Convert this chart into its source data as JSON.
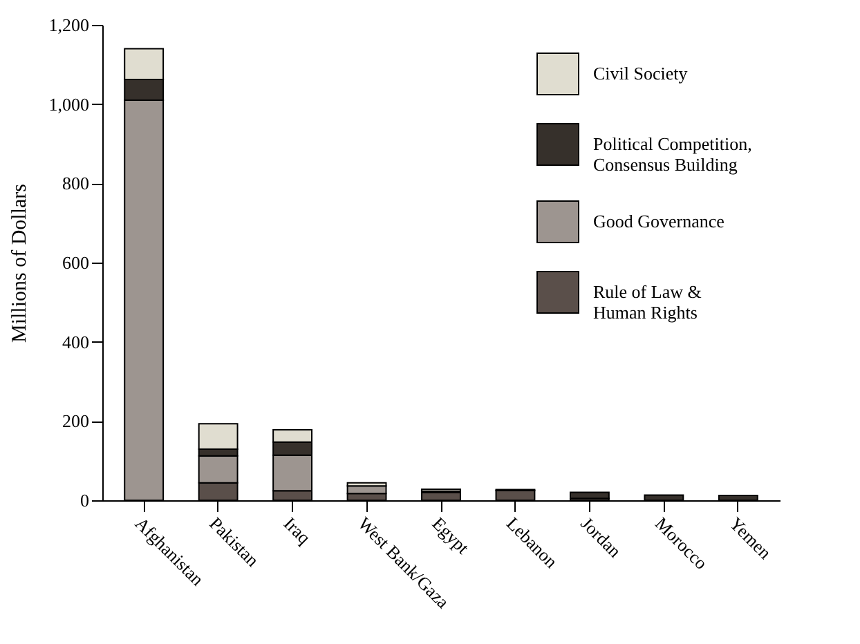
{
  "chart_data": {
    "type": "bar",
    "stacked": true,
    "ylabel": "Millions of Dollars",
    "categories": [
      "Afghanistan",
      "Pakistan",
      "Iraq",
      "West Bank/Gaza",
      "Egypt",
      "Lebanon",
      "Jordan",
      "Morocco",
      "Yemen"
    ],
    "ylim": [
      0,
      1200
    ],
    "yticks": [
      0,
      {
        "value": 200,
        "label": "200"
      },
      {
        "value": 400,
        "label": "400"
      },
      {
        "value": 600,
        "label": "600"
      },
      {
        "value": 800,
        "label": "800"
      },
      {
        "value": 1000,
        "label": "1,000"
      },
      {
        "value": 1200,
        "label": "1,200"
      }
    ],
    "grid": false,
    "legend": "top right",
    "series": [
      {
        "name": "Rule of Law &\nHuman Rights",
        "color": "#5a4f4a",
        "values": [
          0,
          44,
          24,
          17,
          20,
          25,
          5,
          0,
          0
        ]
      },
      {
        "name": "Good Governance",
        "color": "#9d9590",
        "values": [
          1010,
          68,
          90,
          19,
          3,
          0,
          0,
          0,
          0
        ]
      },
      {
        "name": "Political Competition,\nConsensus Building",
        "color": "#36302b",
        "values": [
          52,
          17,
          33,
          0,
          0,
          2,
          15,
          13,
          12
        ]
      },
      {
        "name": "Civil Society",
        "color": "#e0ddd0",
        "values": [
          78,
          64,
          31,
          8,
          5,
          0,
          0,
          0,
          0
        ]
      }
    ]
  }
}
